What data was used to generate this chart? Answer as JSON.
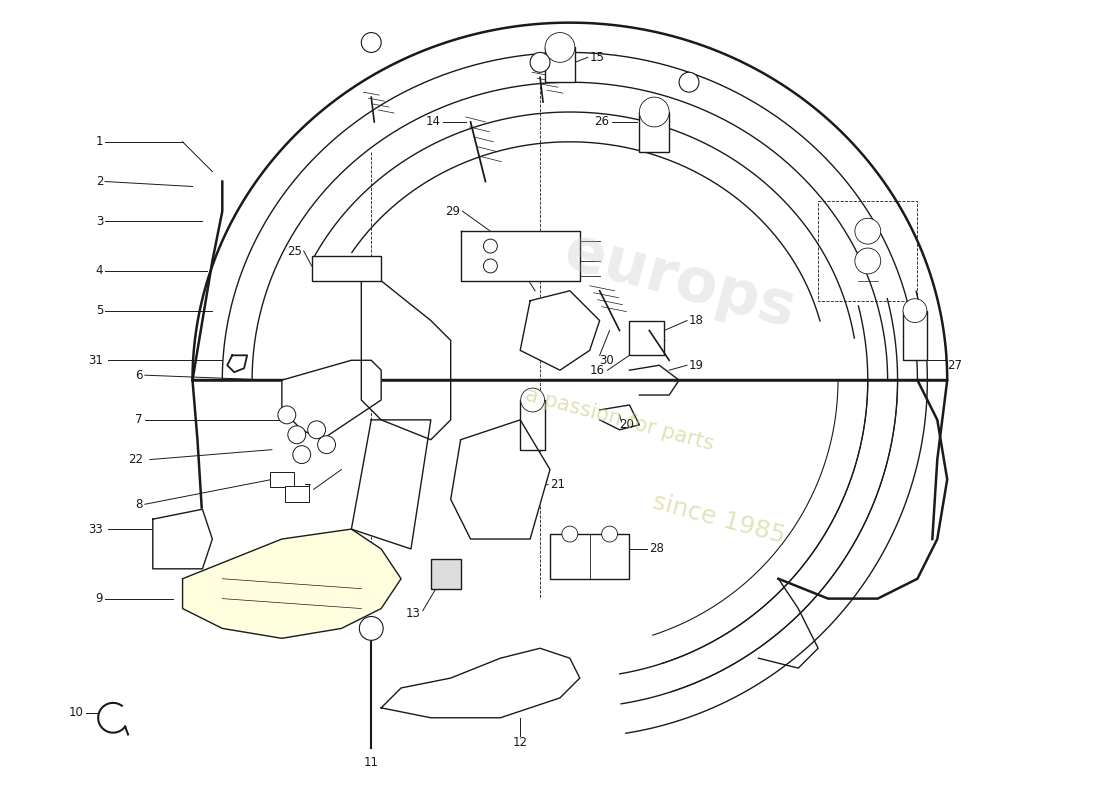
{
  "bg_color": "#ffffff",
  "line_color": "#1a1a1a",
  "watermark1": "europs",
  "watermark2": "a passion for parts",
  "watermark3": "since 1985",
  "figsize": [
    11.0,
    8.0
  ],
  "dpi": 100
}
